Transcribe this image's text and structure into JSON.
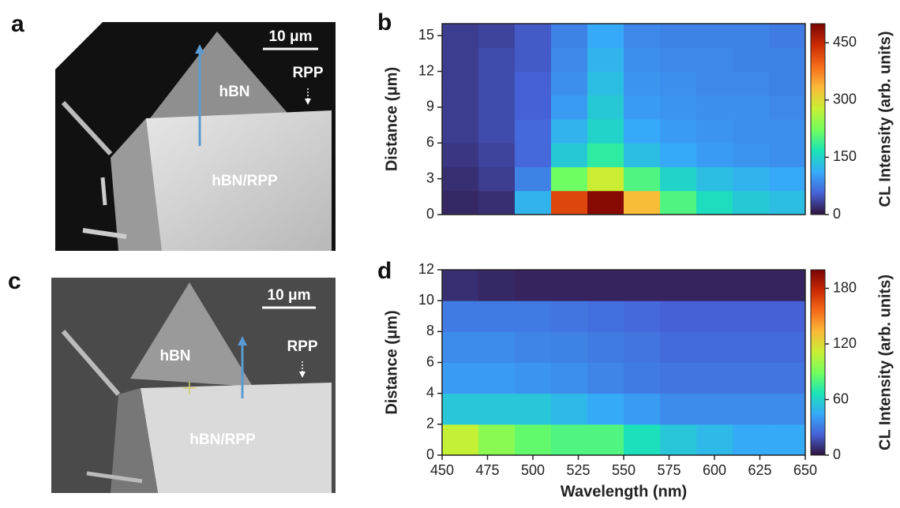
{
  "images": [
    {
      "panel": "a",
      "scale_bar": "10 μm",
      "labels": [
        "hBN",
        "RPP",
        "hBN/RPP"
      ]
    },
    {
      "panel": "c",
      "scale_bar": "10 μm",
      "labels": [
        "hBN",
        "RPP",
        "hBN/RPP"
      ]
    }
  ],
  "chart_data": [
    {
      "type": "heatmap",
      "panel": "b",
      "ylabel": "Distance (μm)",
      "colorbar_label": "CL Intensity (arb. units)",
      "xlim": [
        450,
        650
      ],
      "ylim": [
        0,
        16
      ],
      "yticks": [
        0,
        3,
        6,
        9,
        12,
        15
      ],
      "clim": [
        0,
        500
      ],
      "cticks": [
        0,
        150,
        300,
        450
      ],
      "colormap": [
        "#30123b",
        "#4662d7",
        "#36aaf9",
        "#1ae4b6",
        "#72fe5e",
        "#c8ef34",
        "#faba39",
        "#f66b19",
        "#ca2a04",
        "#7a0403"
      ],
      "x_bins": [
        450,
        470,
        490,
        510,
        530,
        550,
        570,
        590,
        610,
        630,
        650
      ],
      "y_bins": [
        0,
        2,
        4,
        6,
        8,
        10,
        12,
        14,
        16
      ],
      "z": [
        [
          15,
          20,
          120,
          420,
          490,
          330,
          200,
          160,
          140,
          130
        ],
        [
          20,
          30,
          80,
          220,
          280,
          200,
          150,
          130,
          120,
          110
        ],
        [
          25,
          35,
          60,
          140,
          180,
          130,
          110,
          100,
          95,
          90
        ],
        [
          30,
          40,
          60,
          120,
          150,
          110,
          100,
          95,
          90,
          90
        ],
        [
          30,
          40,
          55,
          100,
          140,
          100,
          95,
          90,
          90,
          85
        ],
        [
          30,
          40,
          55,
          90,
          130,
          95,
          90,
          85,
          85,
          80
        ],
        [
          30,
          40,
          50,
          85,
          120,
          90,
          85,
          85,
          80,
          80
        ],
        [
          30,
          35,
          50,
          80,
          110,
          85,
          80,
          80,
          80,
          75
        ]
      ]
    },
    {
      "type": "heatmap",
      "panel": "d",
      "xlabel": "Wavelength (nm)",
      "ylabel": "Distance (μm)",
      "colorbar_label": "CL Intensity (arb. units)",
      "xlim": [
        450,
        650
      ],
      "xticks": [
        450,
        475,
        500,
        525,
        550,
        575,
        600,
        625,
        650
      ],
      "ylim": [
        0,
        12
      ],
      "yticks": [
        0,
        2,
        4,
        6,
        8,
        10,
        12
      ],
      "clim": [
        0,
        200
      ],
      "cticks": [
        0,
        60,
        120,
        180
      ],
      "colormap": [
        "#30123b",
        "#4662d7",
        "#36aaf9",
        "#1ae4b6",
        "#72fe5e",
        "#c8ef34",
        "#faba39",
        "#f66b19",
        "#ca2a04",
        "#7a0403"
      ],
      "x_bins": [
        450,
        470,
        490,
        510,
        530,
        550,
        570,
        590,
        610,
        630,
        650
      ],
      "y_bins": [
        0,
        2,
        4,
        6,
        8,
        10,
        12
      ],
      "z": [
        [
          110,
          95,
          85,
          80,
          80,
          65,
          55,
          50,
          45,
          45
        ],
        [
          55,
          55,
          55,
          50,
          45,
          40,
          35,
          35,
          35,
          35
        ],
        [
          40,
          40,
          38,
          36,
          33,
          30,
          28,
          28,
          28,
          28
        ],
        [
          35,
          35,
          33,
          32,
          30,
          28,
          25,
          25,
          25,
          25
        ],
        [
          30,
          30,
          30,
          28,
          26,
          24,
          22,
          22,
          22,
          22
        ],
        [
          8,
          6,
          5,
          5,
          5,
          5,
          5,
          5,
          5,
          5
        ]
      ]
    }
  ]
}
